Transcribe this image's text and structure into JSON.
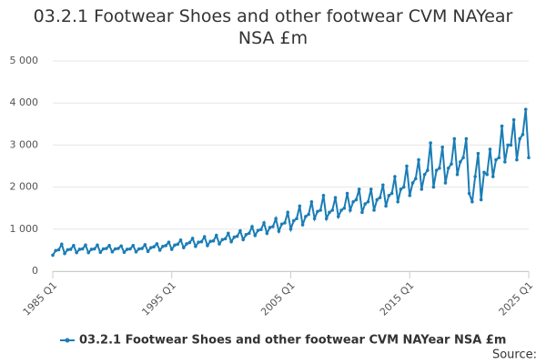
{
  "chart_data": {
    "type": "line",
    "title": "03.2.1 Footwear Shoes and other footwear CVM NAYear NSA £m",
    "source": "Source:",
    "categories": [
      "1985 Q1",
      null,
      null,
      null,
      null,
      null,
      null,
      null,
      null,
      null,
      null,
      null,
      null,
      null,
      null,
      null,
      null,
      null,
      null,
      null,
      null,
      null,
      null,
      null,
      null,
      null,
      null,
      null,
      null,
      null,
      null,
      null,
      null,
      null,
      null,
      null,
      null,
      null,
      null,
      null,
      "1995 Q1",
      null,
      null,
      null,
      null,
      null,
      null,
      null,
      null,
      null,
      null,
      null,
      null,
      null,
      null,
      null,
      null,
      null,
      null,
      null,
      null,
      null,
      null,
      null,
      null,
      null,
      null,
      null,
      null,
      null,
      null,
      null,
      null,
      null,
      null,
      null,
      null,
      null,
      null,
      null,
      "2005 Q1",
      null,
      null,
      null,
      null,
      null,
      null,
      null,
      null,
      null,
      null,
      null,
      null,
      null,
      null,
      null,
      null,
      null,
      null,
      null,
      null,
      null,
      null,
      null,
      null,
      null,
      null,
      null,
      null,
      null,
      null,
      null,
      null,
      null,
      null,
      null,
      null,
      null,
      null,
      null,
      "2015 Q1",
      null,
      null,
      null,
      null,
      null,
      null,
      null,
      null,
      null,
      null,
      null,
      null,
      null,
      null,
      null,
      null,
      null,
      null,
      null,
      null,
      null,
      null,
      null,
      null,
      null,
      null,
      null,
      null,
      null,
      null,
      null,
      null,
      null,
      null,
      null,
      null,
      null,
      null,
      null,
      "2025 Q1"
    ],
    "series": [
      {
        "name": "03.2.1 Footwear Shoes and other footwear CVM NAYear NSA £m",
        "color": "#1a7db6",
        "values": [
          380,
          490,
          510,
          640,
          420,
          510,
          520,
          610,
          440,
          520,
          530,
          620,
          440,
          520,
          530,
          620,
          450,
          530,
          540,
          610,
          460,
          530,
          540,
          600,
          450,
          520,
          530,
          610,
          460,
          530,
          540,
          630,
          470,
          560,
          580,
          650,
          500,
          590,
          610,
          690,
          520,
          620,
          640,
          740,
          560,
          650,
          680,
          780,
          590,
          690,
          700,
          820,
          610,
          710,
          720,
          850,
          650,
          750,
          770,
          900,
          700,
          810,
          830,
          960,
          750,
          870,
          900,
          1060,
          850,
          970,
          990,
          1150,
          900,
          1040,
          1060,
          1250,
          950,
          1120,
          1150,
          1400,
          1000,
          1200,
          1250,
          1550,
          1100,
          1300,
          1350,
          1650,
          1250,
          1420,
          1450,
          1800,
          1250,
          1400,
          1450,
          1750,
          1300,
          1450,
          1500,
          1850,
          1450,
          1650,
          1700,
          1950,
          1400,
          1600,
          1650,
          1950,
          1450,
          1700,
          1750,
          2050,
          1550,
          1800,
          1850,
          2250,
          1650,
          1950,
          2000,
          2500,
          1800,
          2100,
          2200,
          2650,
          1950,
          2300,
          2400,
          3050,
          2000,
          2400,
          2450,
          2950,
          2100,
          2450,
          2550,
          3150,
          2300,
          2600,
          2700,
          3150,
          1850,
          1650,
          2250,
          2800,
          1700,
          2350,
          2300,
          2900,
          2250,
          2650,
          2700,
          3450,
          2600,
          3000,
          3000,
          3600,
          2650,
          3150,
          3250,
          3850,
          2700
        ]
      }
    ],
    "ylim": [
      0,
      5000
    ],
    "yticks": [
      0,
      {
        "value": 1000,
        "label": "1 000"
      },
      {
        "value": 2000,
        "label": "2 000"
      },
      {
        "value": 3000,
        "label": "3 000"
      },
      {
        "value": 4000,
        "label": "4 000"
      },
      {
        "value": 5000,
        "label": "5 000"
      }
    ],
    "grid": true,
    "legend": "bottom"
  }
}
